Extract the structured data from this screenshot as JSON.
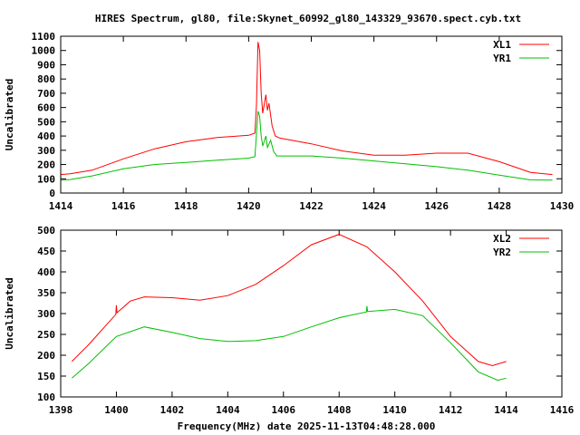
{
  "title": "HIRES Spectrum, gl80, file:Skynet_60992_gl80_143329_93670.spect.cyb.txt",
  "xlabel": "Frequency(MHz) date 2025-11-13T04:48:28.000",
  "chart_data": [
    {
      "type": "line",
      "ylabel": "Uncalibrated",
      "xlim": [
        1414,
        1430
      ],
      "ylim": [
        0,
        1100
      ],
      "xticks": [
        "1414",
        "1416",
        "1418",
        "1420",
        "1422",
        "1424",
        "1426",
        "1428",
        "1430"
      ],
      "yticks": [
        "0",
        "100",
        "200",
        "300",
        "400",
        "500",
        "600",
        "700",
        "800",
        "900",
        "1000",
        "1100"
      ],
      "legend_position": "top-right",
      "grid": false,
      "series": [
        {
          "name": "XL1",
          "color": "#ff0000",
          "x": [
            1414,
            1414.3,
            1415,
            1416,
            1417,
            1418,
            1419,
            1420,
            1420.2,
            1420.25,
            1420.3,
            1420.35,
            1420.4,
            1420.45,
            1420.55,
            1420.6,
            1420.65,
            1420.75,
            1420.85,
            1421,
            1422,
            1423,
            1424,
            1425,
            1426,
            1427,
            1428,
            1429,
            1429.7
          ],
          "y": [
            130,
            135,
            160,
            240,
            310,
            360,
            390,
            405,
            420,
            620,
            1060,
            1000,
            700,
            560,
            690,
            580,
            630,
            470,
            400,
            385,
            345,
            295,
            265,
            265,
            280,
            280,
            220,
            145,
            130
          ]
        },
        {
          "name": "YR1",
          "color": "#00c000",
          "x": [
            1414,
            1414.3,
            1415,
            1416,
            1417,
            1418,
            1419,
            1420,
            1420.2,
            1420.3,
            1420.35,
            1420.4,
            1420.45,
            1420.55,
            1420.6,
            1420.7,
            1420.8,
            1420.9,
            1422,
            1423,
            1424,
            1425,
            1426,
            1427,
            1428,
            1429,
            1429.7
          ],
          "y": [
            90,
            95,
            120,
            170,
            200,
            215,
            230,
            245,
            255,
            575,
            540,
            400,
            330,
            400,
            320,
            370,
            290,
            260,
            260,
            245,
            225,
            205,
            185,
            160,
            125,
            92,
            90
          ]
        }
      ]
    },
    {
      "type": "line",
      "ylabel": "Uncalibrated",
      "xlim": [
        1398,
        1416
      ],
      "ylim": [
        100,
        500
      ],
      "xticks": [
        "1398",
        "1400",
        "1402",
        "1404",
        "1406",
        "1408",
        "1410",
        "1412",
        "1414",
        "1416"
      ],
      "yticks": [
        "100",
        "150",
        "200",
        "250",
        "300",
        "350",
        "400",
        "450",
        "500"
      ],
      "legend_position": "top-right",
      "grid": false,
      "series": [
        {
          "name": "XL2",
          "color": "#ff0000",
          "x": [
            1398.4,
            1399,
            1399.98,
            1400,
            1400.02,
            1400.5,
            1401,
            1402,
            1403,
            1404,
            1405,
            1406,
            1407,
            1408,
            1409,
            1410,
            1411,
            1412,
            1413,
            1413.5,
            1414
          ],
          "y": [
            185,
            225,
            298,
            320,
            302,
            330,
            340,
            338,
            332,
            343,
            370,
            415,
            465,
            490,
            460,
            400,
            330,
            245,
            185,
            175,
            185
          ]
        },
        {
          "name": "YR2",
          "color": "#00c000",
          "x": [
            1398.4,
            1399,
            1400,
            1401,
            1402,
            1403,
            1404,
            1405,
            1406,
            1407,
            1408,
            1408.98,
            1409,
            1409.02,
            1410,
            1411,
            1412,
            1413,
            1413.7,
            1414
          ],
          "y": [
            145,
            180,
            245,
            268,
            255,
            240,
            233,
            235,
            245,
            268,
            290,
            304,
            318,
            305,
            310,
            295,
            230,
            160,
            140,
            145
          ]
        }
      ]
    }
  ]
}
